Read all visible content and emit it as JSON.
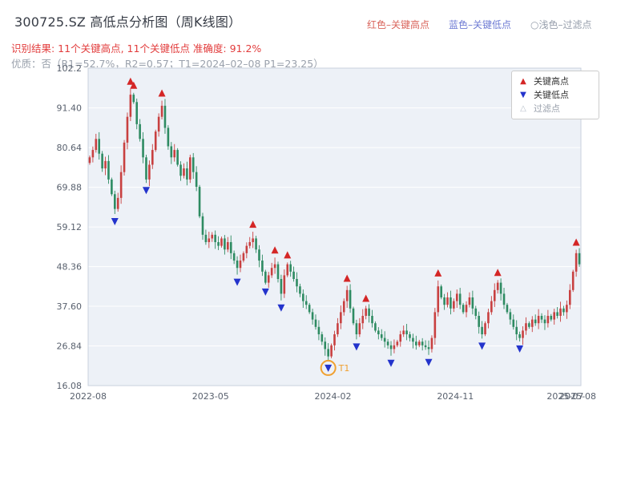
{
  "header": {
    "title": "300725.SZ 高低点分析图（周K线图）",
    "inline_legend": {
      "high": "红色–关键高点",
      "low": "蓝色–关键低点",
      "filtered": "○浅色–过滤点"
    },
    "result_line": "识别结果: 11个关键高点, 11个关键低点  准确度: 91.2%",
    "quality_line": "优质：否（R1=52.7%，R2=0.57；T1=2024–02–08 P1=23.25）"
  },
  "legend_box": {
    "items": [
      {
        "label": "关键高点",
        "marker": "up-triangle",
        "color": "#d42626"
      },
      {
        "label": "关键低点",
        "marker": "down-triangle",
        "color": "#2333cc"
      },
      {
        "label": "过滤点",
        "marker": "up-triangle-outline",
        "color": "#b9c0cc"
      }
    ]
  },
  "chart_data": {
    "type": "candlestick",
    "symbol": "300725.SZ",
    "interval": "weekly",
    "title": "300725.SZ 高低点分析图（周K线图）",
    "ylim": [
      16.08,
      102.2
    ],
    "grid": true,
    "y_ticks": [
      {
        "value": 16.08,
        "label": "16.08"
      },
      {
        "value": 26.84,
        "label": "26.84"
      },
      {
        "value": 37.6,
        "label": "37.60"
      },
      {
        "value": 48.36,
        "label": "48.36"
      },
      {
        "value": 59.12,
        "label": "59.12"
      },
      {
        "value": 69.88,
        "label": "69.88"
      },
      {
        "value": 80.64,
        "label": "80.64"
      },
      {
        "value": 91.4,
        "label": "91.40"
      },
      {
        "value": 102.2,
        "label": "102.2"
      }
    ],
    "x_ticks": [
      {
        "week": 0,
        "label": "2022-08"
      },
      {
        "week": 39,
        "label": "2023-05"
      },
      {
        "week": 78,
        "label": "2024-02"
      },
      {
        "week": 117,
        "label": "2024-11"
      },
      {
        "week": 152,
        "label": "2025-07"
      },
      {
        "week": 156,
        "label": "2025-08"
      }
    ],
    "closes": [
      78,
      80,
      83,
      79,
      75,
      77,
      72,
      68,
      64,
      67,
      74,
      82,
      89,
      95,
      93,
      87,
      83,
      78,
      72,
      76,
      80,
      85,
      89,
      92,
      86,
      81,
      78,
      80,
      76,
      73,
      75,
      72,
      78,
      74,
      70,
      62,
      57,
      55,
      56,
      57,
      55,
      54,
      56,
      53,
      55,
      52,
      50,
      48,
      50,
      52,
      54,
      55,
      56,
      53,
      50,
      47,
      44,
      46,
      48,
      49,
      45,
      41,
      46,
      49,
      47,
      45,
      43,
      41,
      39,
      38,
      36,
      34,
      32,
      30,
      28,
      26,
      24,
      27,
      30,
      33,
      36,
      39,
      42,
      37,
      33,
      30,
      33,
      35,
      37,
      35,
      33,
      31,
      30,
      29,
      28,
      27,
      26,
      27,
      28,
      30,
      31,
      30,
      29,
      28,
      27,
      28,
      27,
      26.5,
      26,
      29,
      36,
      43,
      40,
      38,
      40,
      37,
      39,
      41,
      38,
      36,
      38,
      40,
      37,
      35,
      32,
      30,
      33,
      36,
      39,
      42,
      44,
      41,
      38,
      36,
      34,
      32,
      30,
      29,
      31,
      33,
      32,
      34,
      33,
      35,
      34,
      33,
      35,
      34,
      36,
      35,
      37,
      36,
      38,
      42,
      47,
      52,
      49
    ],
    "key_highs": [
      13,
      14,
      23,
      52,
      59,
      63,
      82,
      88,
      111,
      130,
      155
    ],
    "key_lows": [
      8,
      18,
      47,
      56,
      61,
      76,
      85,
      96,
      108,
      125,
      137
    ],
    "t1": {
      "week": 76,
      "label": "T1",
      "price": 23.25,
      "date": "2024-02-08"
    },
    "colors": {
      "up": "#c84040",
      "down": "#2e8b62",
      "high_marker": "#d42626",
      "low_marker": "#2333cc",
      "t1": "#f0a030",
      "plot_bg": "#edf1f7",
      "grid": "#ffffff",
      "axis_text": "#59616e",
      "border": "#c9d1dd"
    }
  }
}
